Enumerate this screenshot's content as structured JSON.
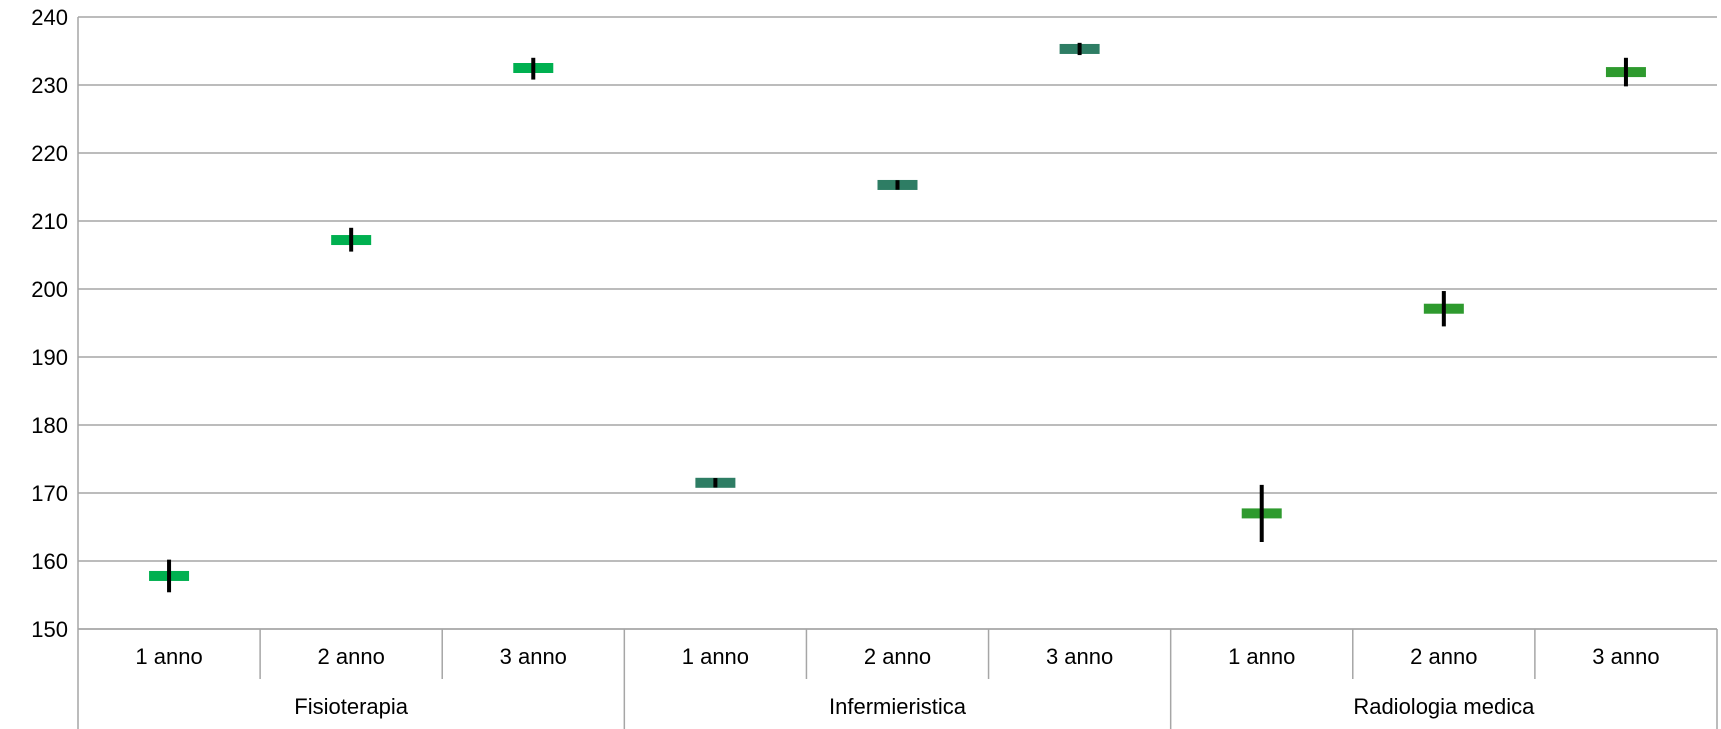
{
  "chart_data": {
    "type": "scatter",
    "title": "",
    "xlabel": "",
    "ylabel": "",
    "ylim": [
      150,
      240
    ],
    "yticks": [
      150,
      160,
      170,
      180,
      190,
      200,
      210,
      220,
      230,
      240
    ],
    "grid": true,
    "legend": "none",
    "groups": [
      {
        "name": "Fisioterapia",
        "categories": [
          "1 anno",
          "2 anno",
          "3 anno"
        ],
        "color": "#00b050"
      },
      {
        "name": "Infermieristica",
        "categories": [
          "1 anno",
          "2 anno",
          "3 anno"
        ],
        "color": "#2e7d64"
      },
      {
        "name": "Radiologia medica",
        "categories": [
          "1 anno",
          "2 anno",
          "3 anno"
        ],
        "color": "#2e9a2e"
      }
    ],
    "points": [
      {
        "group": "Fisioterapia",
        "category": "1 anno",
        "value": 157.8,
        "err_low": 155.4,
        "err_high": 160.2
      },
      {
        "group": "Fisioterapia",
        "category": "2 anno",
        "value": 207.2,
        "err_low": 205.5,
        "err_high": 209.0
      },
      {
        "group": "Fisioterapia",
        "category": "3 anno",
        "value": 232.5,
        "err_low": 230.8,
        "err_high": 234.0
      },
      {
        "group": "Infermieristica",
        "category": "1 anno",
        "value": 171.5,
        "err_low": 170.8,
        "err_high": 172.2
      },
      {
        "group": "Infermieristica",
        "category": "2 anno",
        "value": 215.3,
        "err_low": 214.6,
        "err_high": 216.0
      },
      {
        "group": "Infermieristica",
        "category": "3 anno",
        "value": 235.3,
        "err_low": 234.4,
        "err_high": 236.2
      },
      {
        "group": "Radiologia medica",
        "category": "1 anno",
        "value": 167.0,
        "err_low": 162.8,
        "err_high": 171.2
      },
      {
        "group": "Radiologia medica",
        "category": "2 anno",
        "value": 197.1,
        "err_low": 194.5,
        "err_high": 199.7
      },
      {
        "group": "Radiologia medica",
        "category": "3 anno",
        "value": 231.9,
        "err_low": 229.8,
        "err_high": 234.0
      }
    ]
  }
}
